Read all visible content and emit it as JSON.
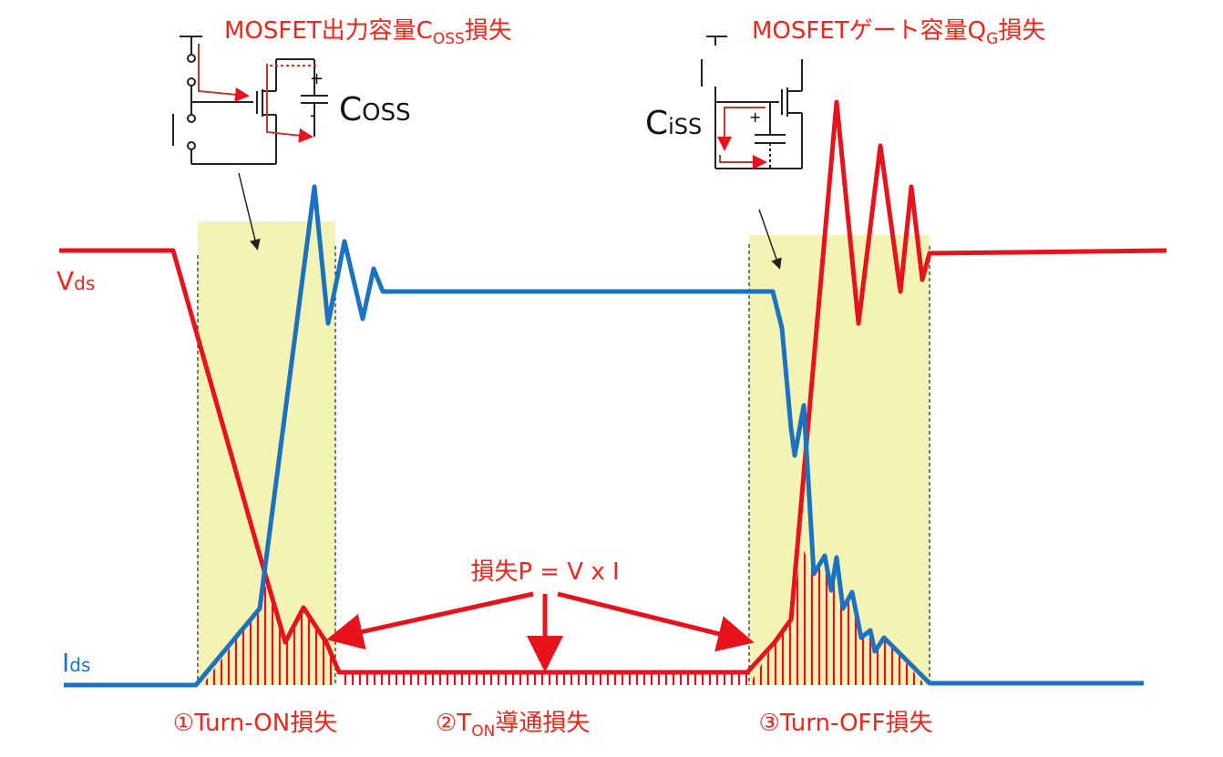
{
  "annotations": {
    "coss_loss": {
      "main": "MOSFET出力容量C",
      "sub": "OSS",
      "suffix": "損失"
    },
    "qg_loss": {
      "main": "MOSFETゲート容量Q",
      "sub": "G",
      "suffix": "損失"
    },
    "coss": {
      "main": "C",
      "sub": "OSS"
    },
    "ciss": {
      "main": "C",
      "sub": "iSS"
    },
    "vds": {
      "main": "V",
      "sub": "ds"
    },
    "ids": {
      "main": "I",
      "sub": "ds"
    },
    "power": "損失P = V x I",
    "turn_on": "①Turn-ON損失",
    "ton": {
      "main": "②T",
      "sub": "ON",
      "suffix": "導通損失"
    },
    "turn_off": "③Turn-OFF損失"
  }
}
